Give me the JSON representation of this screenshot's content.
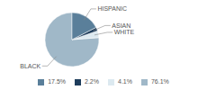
{
  "chart_data": {
    "type": "pie",
    "categories": [
      "BLACK",
      "WHITE",
      "ASIAN",
      "HISPANIC"
    ],
    "values": [
      76.1,
      4.1,
      2.2,
      17.5
    ],
    "value_labels": [
      "76.1%",
      "4.1%",
      "2.2%",
      "17.5%"
    ],
    "colors": [
      "#a0b8c8",
      "#dce9f0",
      "#1e3d5c",
      "#5a7f9a"
    ],
    "legend": "bottom"
  }
}
